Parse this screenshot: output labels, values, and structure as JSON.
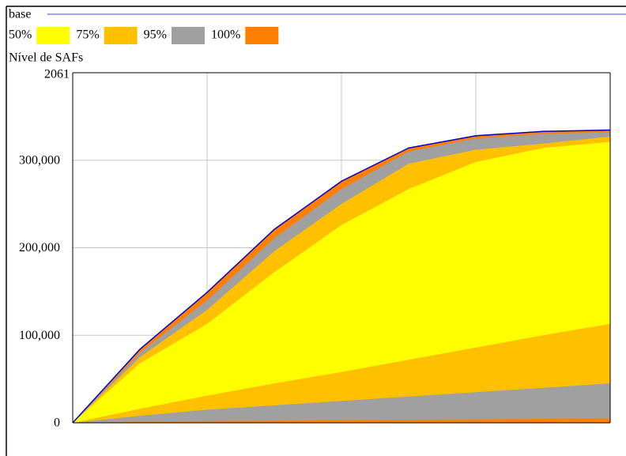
{
  "chart_data": {
    "type": "sensitivity",
    "base_label": "base",
    "base_color": "#0000cc",
    "base_legend_color": "#8080ff",
    "y_label": "Nível de SAFs",
    "top_label": "2061",
    "x": [
      0,
      5,
      10,
      15,
      20,
      25,
      30,
      35,
      40
    ],
    "xlim": [
      0,
      40
    ],
    "xticks": [
      10,
      20,
      30
    ],
    "ylim": [
      0,
      400000
    ],
    "yticks": [
      {
        "value": 0,
        "label": "0"
      },
      {
        "value": 100000,
        "label": "100,000"
      },
      {
        "value": 200000,
        "label": "200,000"
      },
      {
        "value": 300000,
        "label": "300,000"
      }
    ],
    "grid": true,
    "base": [
      0,
      84000,
      149000,
      221000,
      276000,
      314000,
      328000,
      333000,
      334500
    ],
    "bands": [
      {
        "name": "50%",
        "color": "#ffff00",
        "upper": [
          0,
          68000,
          113000,
          172000,
          226000,
          267000,
          298000,
          314000,
          321000
        ],
        "lower": [
          0,
          16000,
          31000,
          45000,
          58000,
          72000,
          86000,
          100000,
          113000
        ]
      },
      {
        "name": "75%",
        "color": "#ffc000",
        "upper": [
          0,
          75000,
          129000,
          196000,
          250000,
          296000,
          312000,
          319000,
          327000
        ],
        "lower": [
          0,
          8000,
          15000,
          20000,
          25000,
          30000,
          35000,
          40000,
          45000
        ]
      },
      {
        "name": "95%",
        "color": "#a0a0a0",
        "upper": [
          0,
          80000,
          140000,
          211000,
          267000,
          310000,
          325000,
          330000,
          332000
        ],
        "lower": [
          0,
          1000,
          2000,
          2500,
          3000,
          3500,
          4000,
          4500,
          5000
        ]
      },
      {
        "name": "100%",
        "color": "#ff8000",
        "upper": [
          0,
          84000,
          149000,
          221000,
          276000,
          314000,
          328000,
          333000,
          334500
        ],
        "lower": [
          0,
          0,
          0,
          0,
          0,
          0,
          0,
          0,
          0
        ]
      }
    ]
  }
}
